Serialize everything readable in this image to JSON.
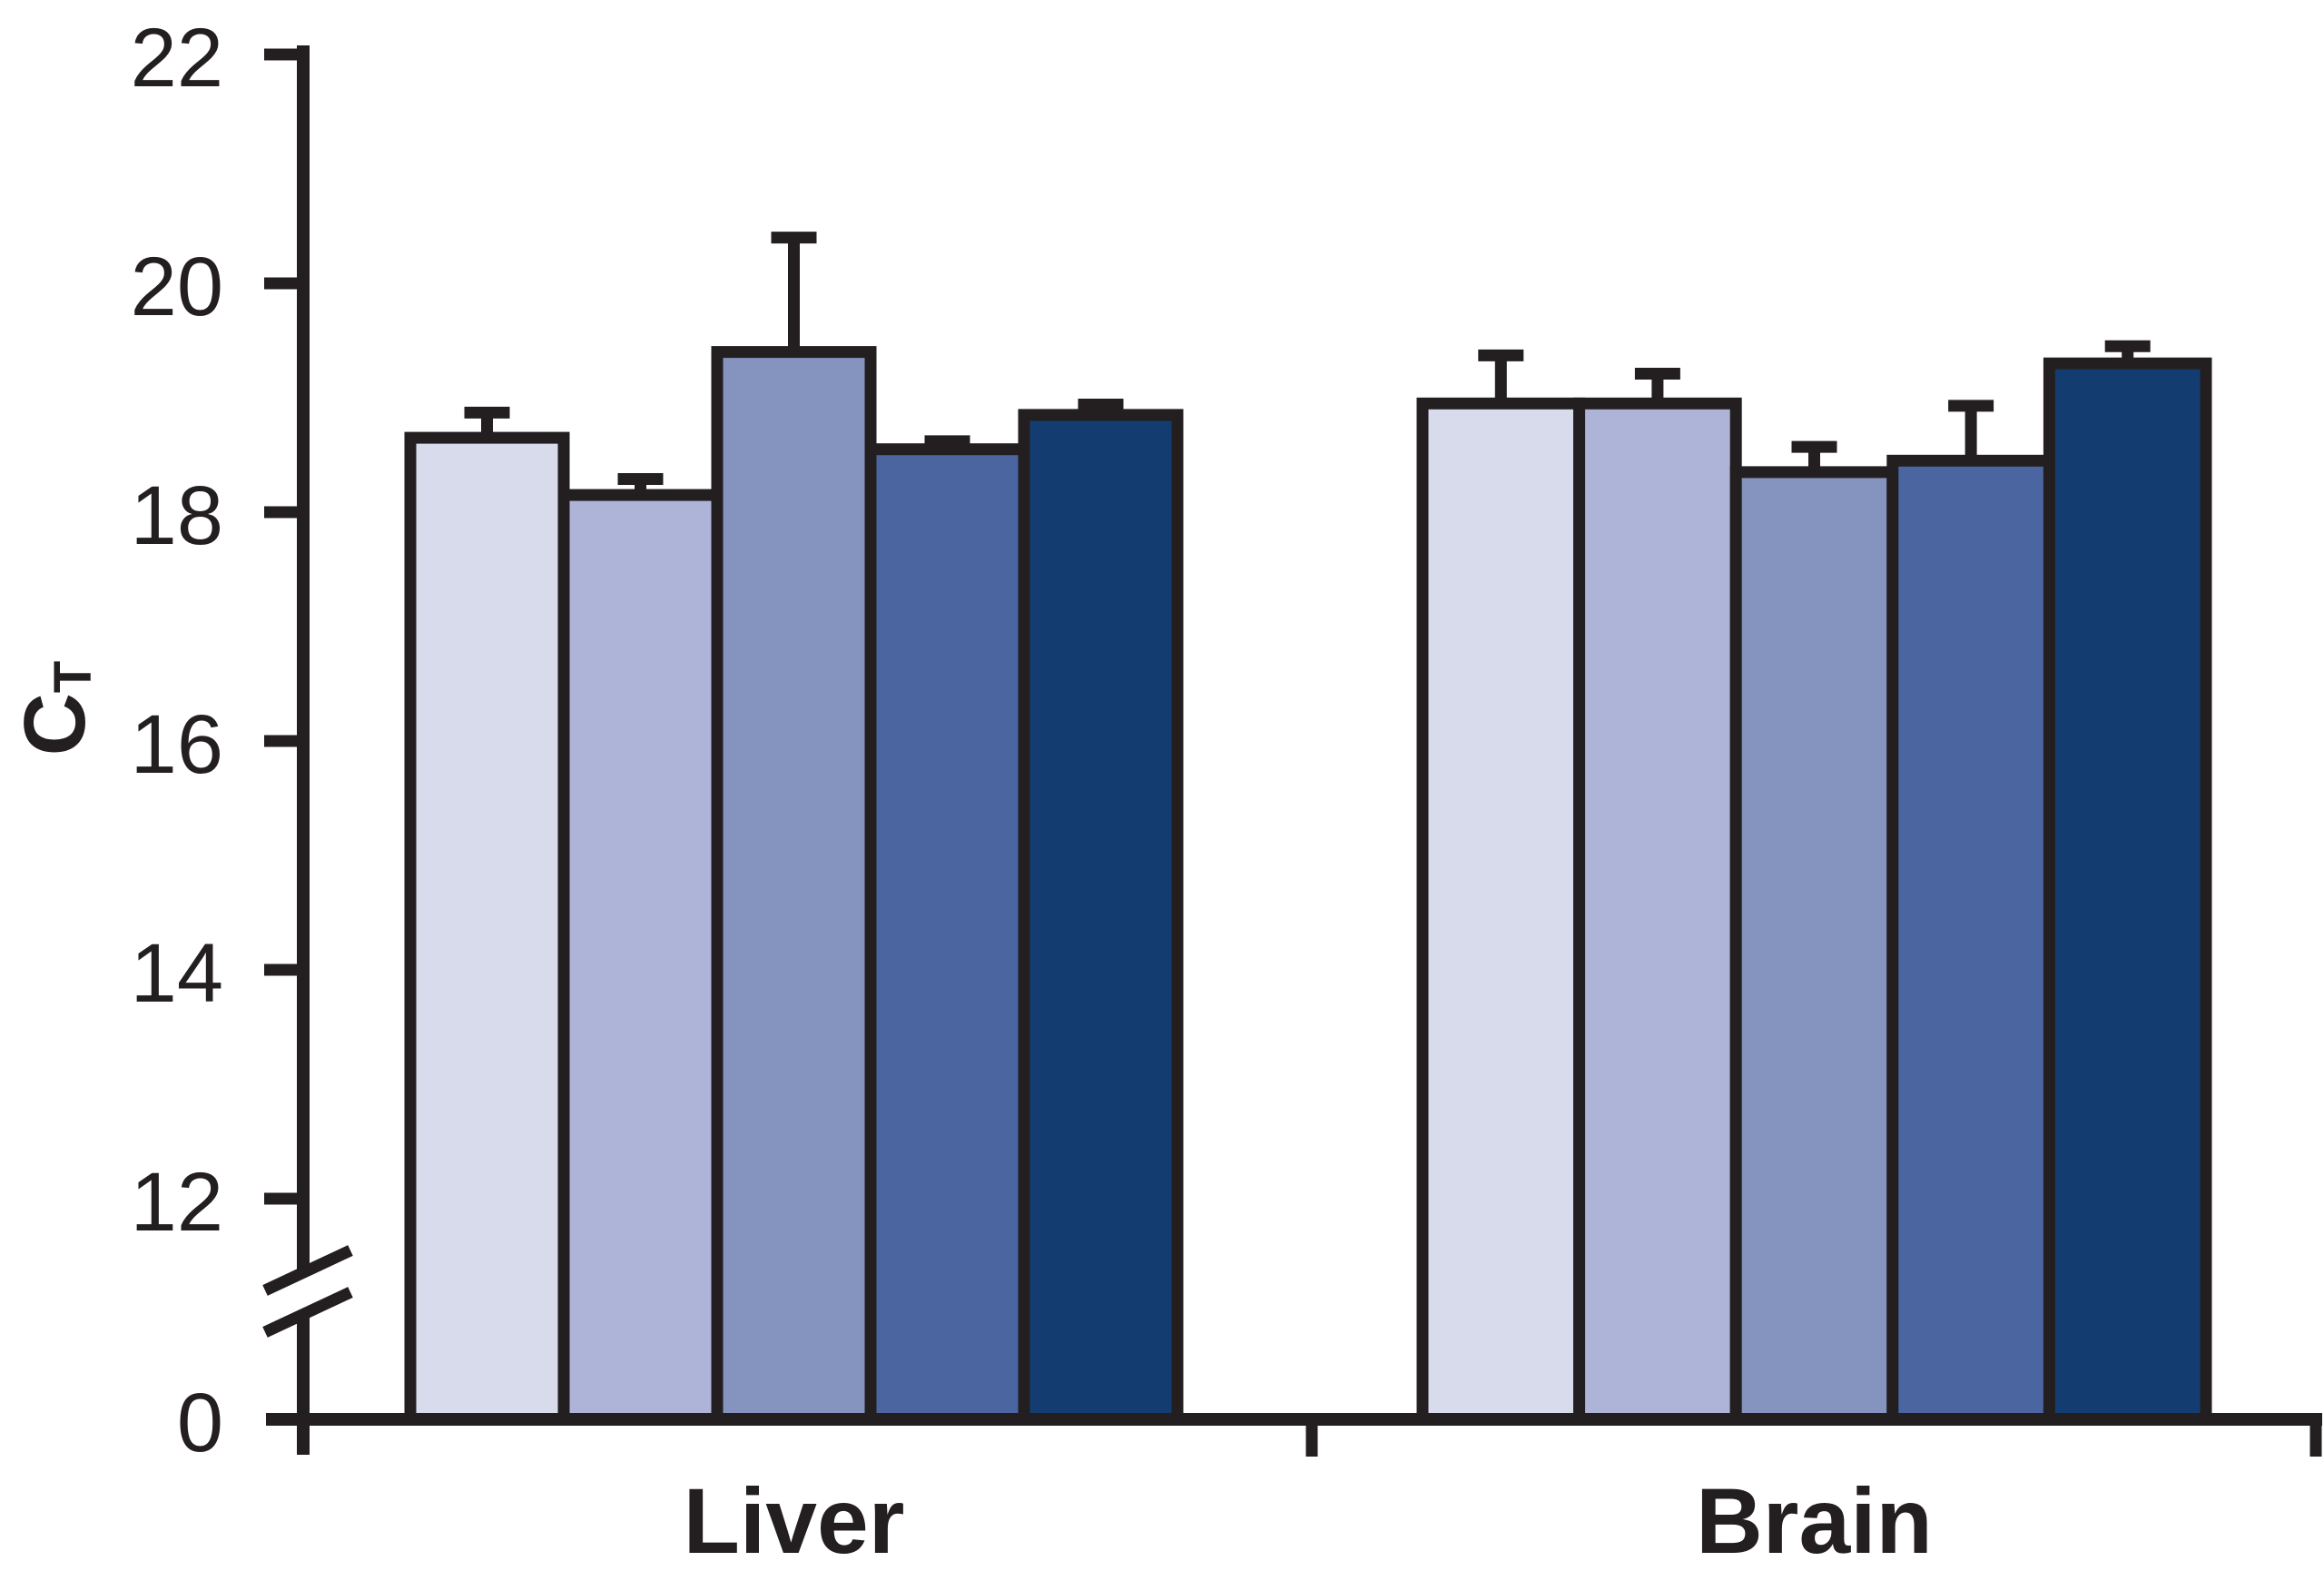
{
  "figure": {
    "background": "#ffffff",
    "ink_color": "#231F20"
  },
  "chart_data": {
    "type": "bar",
    "title": "",
    "ylabel": {
      "base": "C",
      "subscript": "T"
    },
    "xlabel": "",
    "categories": [
      "Liver",
      "Brain"
    ],
    "series": [
      {
        "color": "#D8DBEC",
        "values": [
          18.65,
          18.95
        ],
        "errors": [
          0.22,
          0.42
        ]
      },
      {
        "color": "#AEB4D8",
        "values": [
          18.15,
          18.95
        ],
        "errors": [
          0.14,
          0.26
        ]
      },
      {
        "color": "#8494BE",
        "values": [
          19.4,
          18.35
        ],
        "errors": [
          1.0,
          0.22
        ]
      },
      {
        "color": "#4A65A0",
        "values": [
          18.55,
          18.45
        ],
        "errors": [
          0.07,
          0.48
        ]
      },
      {
        "color": "#133D70",
        "values": [
          18.85,
          19.3
        ],
        "errors": [
          0.09,
          0.15
        ]
      }
    ],
    "y_ticks": [
      0,
      12,
      14,
      16,
      18,
      20,
      22
    ],
    "ylim": [
      0,
      22
    ],
    "y_axis_break": {
      "between": [
        0,
        12
      ]
    },
    "error_bars": "upper whisker with cap",
    "grid": false,
    "legend": "none"
  }
}
